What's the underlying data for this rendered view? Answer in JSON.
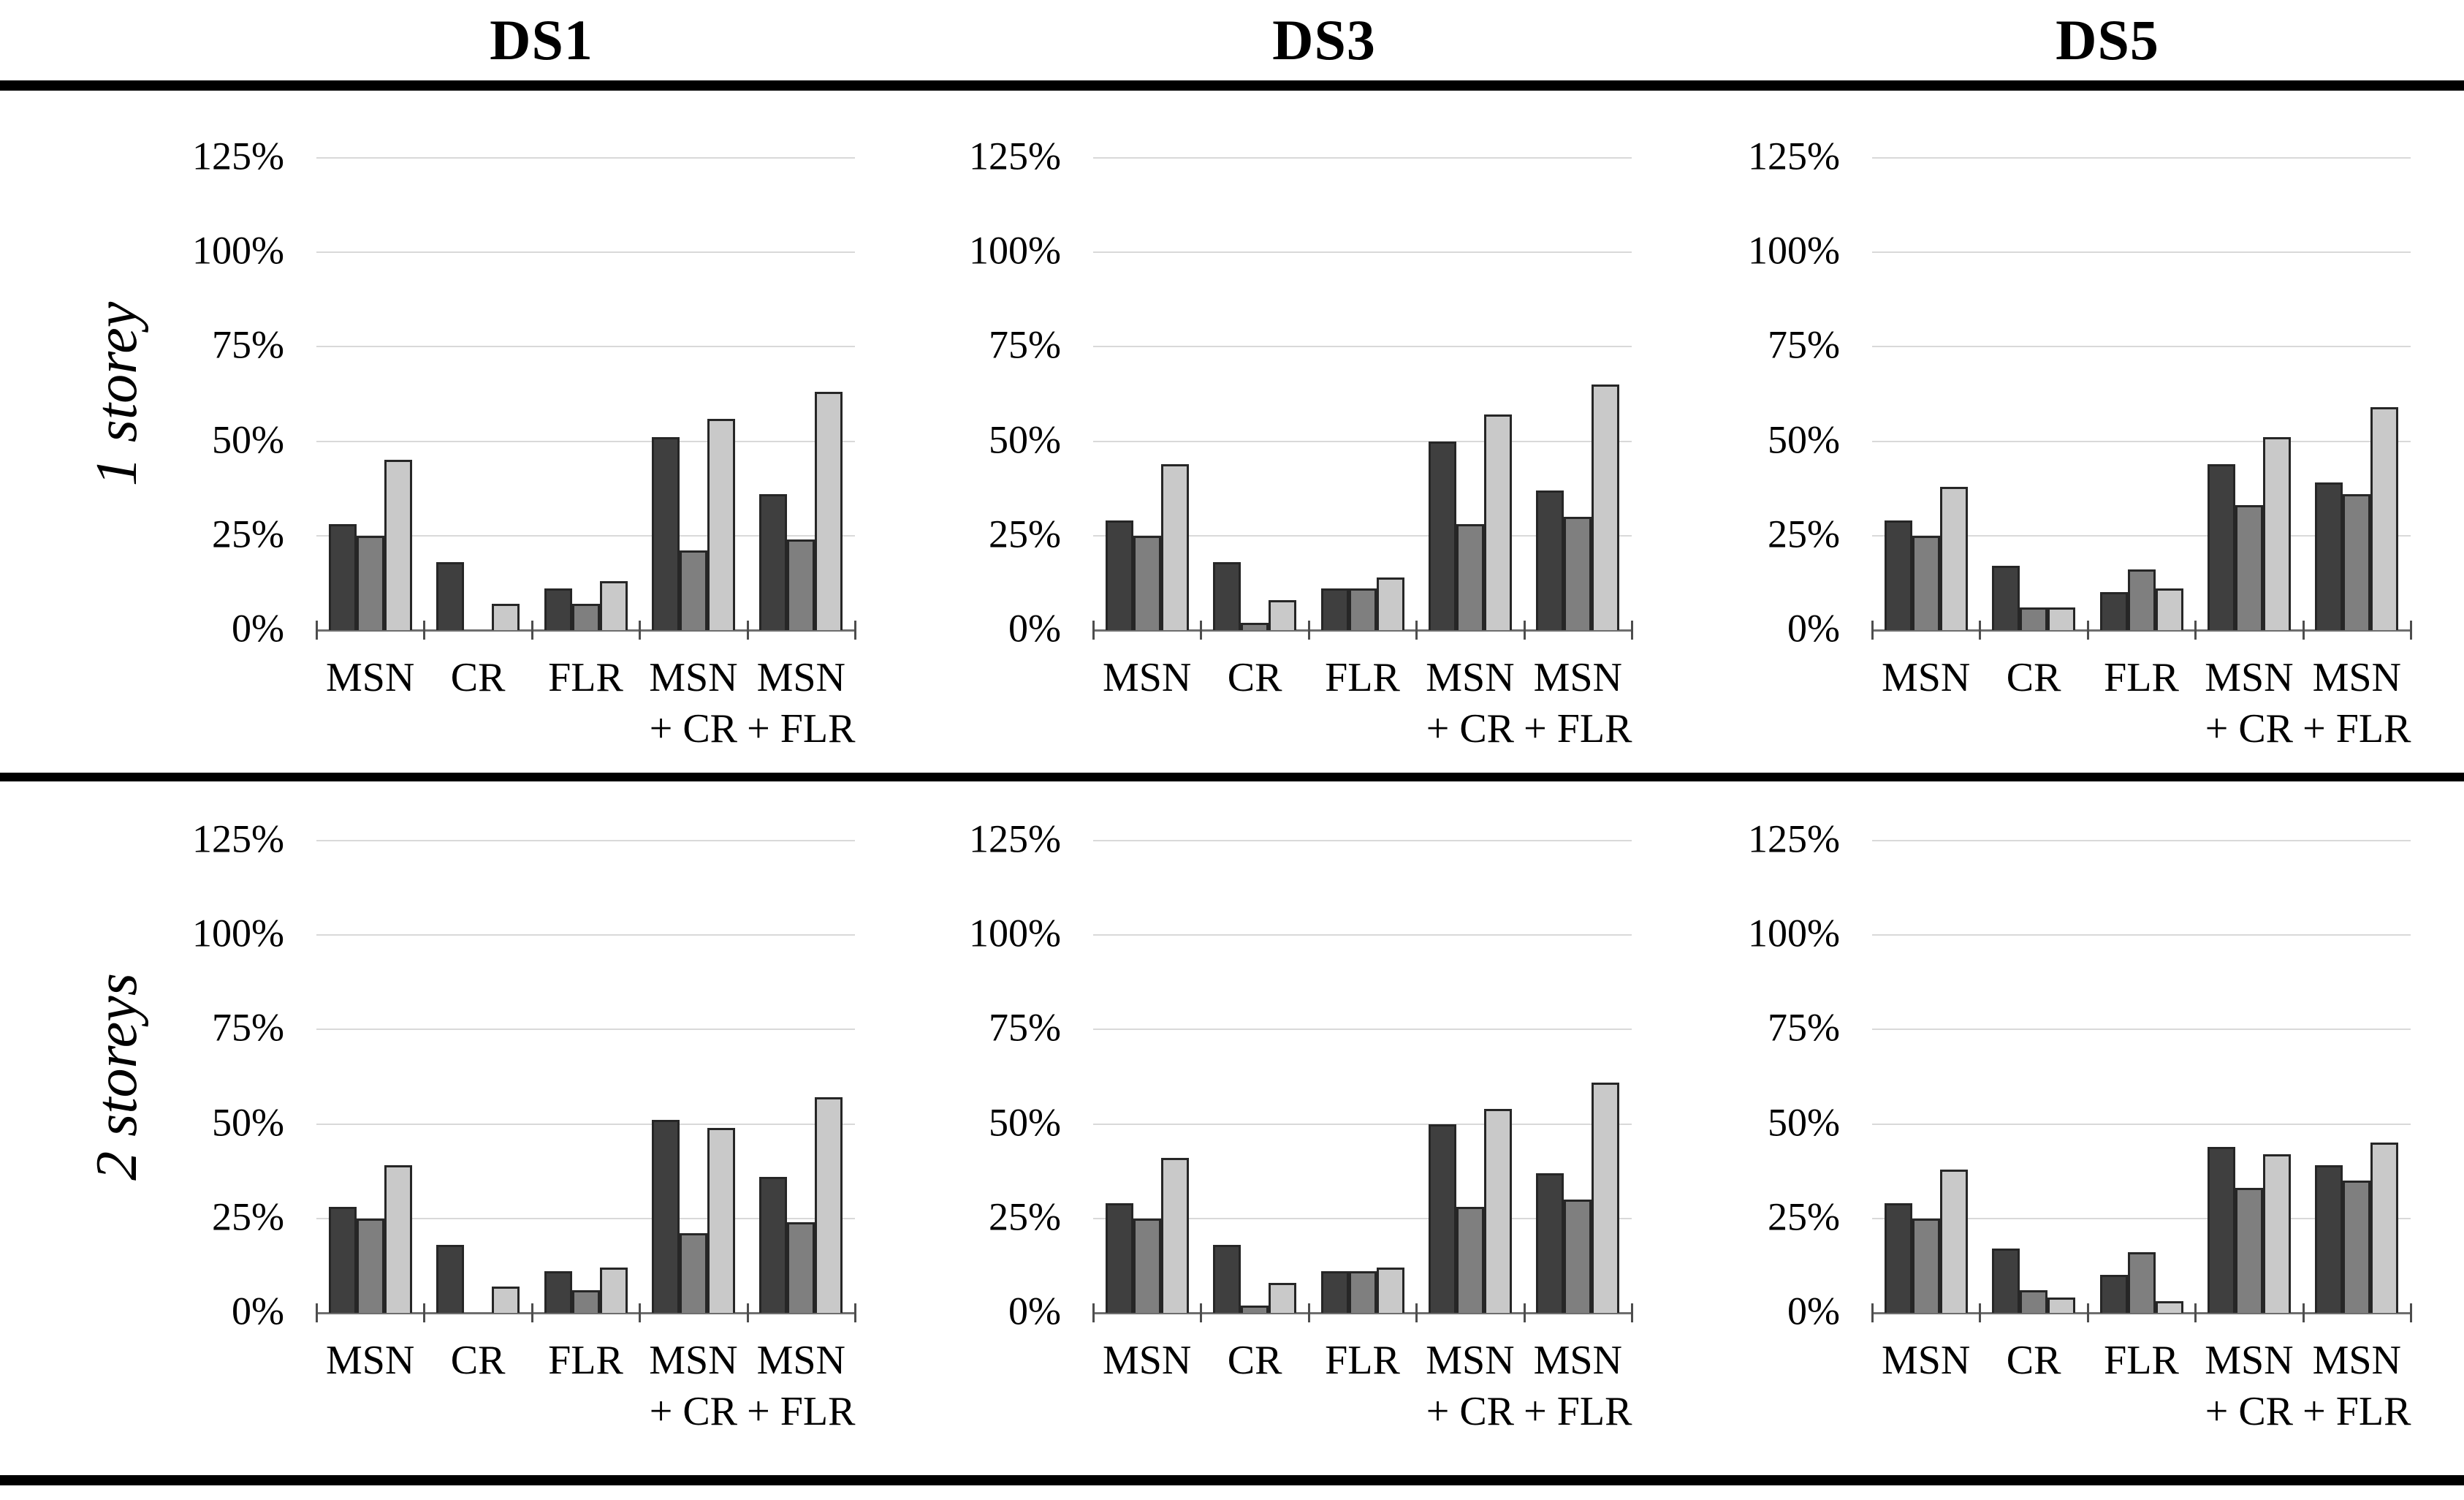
{
  "figure": {
    "column_titles": [
      "DS1",
      "DS3",
      "DS5"
    ],
    "row_labels": [
      "1 storey",
      "2 storeys"
    ],
    "y_axis_ticks": [
      "125%",
      "100%",
      "75%",
      "50%",
      "25%",
      "0%"
    ],
    "colors": {
      "series_dark": "#3f3f3f",
      "series_mid": "#7f7f7f",
      "series_light": "#c9c9c9",
      "bar_border": "#262626",
      "gridline": "#d9d9d9",
      "baseline": "#6e6e6e",
      "axis_tick": "#4d4d4d",
      "rule": "#000000",
      "text": "#000000"
    }
  },
  "chart_data": [
    {
      "type": "bar",
      "row": "1 storey",
      "column": "DS1",
      "categories": [
        "MSN",
        "CR",
        "FLR",
        "MSN + CR",
        "MSN + FLR"
      ],
      "series": [
        {
          "name": "dark-grey",
          "values": [
            28,
            18,
            11,
            51,
            36
          ]
        },
        {
          "name": "mid-grey",
          "values": [
            25,
            0,
            7,
            21,
            24
          ]
        },
        {
          "name": "light-grey",
          "values": [
            45,
            7,
            13,
            56,
            63
          ]
        }
      ],
      "ylabel_format": "percent",
      "ylim": [
        0,
        125
      ],
      "ytick_step": 25,
      "grid": true,
      "legend": false
    },
    {
      "type": "bar",
      "row": "1 storey",
      "column": "DS3",
      "categories": [
        "MSN",
        "CR",
        "FLR",
        "MSN + CR",
        "MSN + FLR"
      ],
      "series": [
        {
          "name": "dark-grey",
          "values": [
            29,
            18,
            11,
            50,
            37
          ]
        },
        {
          "name": "mid-grey",
          "values": [
            25,
            2,
            11,
            28,
            30
          ]
        },
        {
          "name": "light-grey",
          "values": [
            44,
            8,
            14,
            57,
            65
          ]
        }
      ],
      "ylabel_format": "percent",
      "ylim": [
        0,
        125
      ],
      "ytick_step": 25,
      "grid": true,
      "legend": false
    },
    {
      "type": "bar",
      "row": "1 storey",
      "column": "DS5",
      "categories": [
        "MSN",
        "CR",
        "FLR",
        "MSN + CR",
        "MSN + FLR"
      ],
      "series": [
        {
          "name": "dark-grey",
          "values": [
            29,
            17,
            10,
            44,
            39
          ]
        },
        {
          "name": "mid-grey",
          "values": [
            25,
            6,
            16,
            33,
            36
          ]
        },
        {
          "name": "light-grey",
          "values": [
            38,
            6,
            11,
            51,
            59
          ]
        }
      ],
      "ylabel_format": "percent",
      "ylim": [
        0,
        125
      ],
      "ytick_step": 25,
      "grid": true,
      "legend": false
    },
    {
      "type": "bar",
      "row": "2 storeys",
      "column": "DS1",
      "categories": [
        "MSN",
        "CR",
        "FLR",
        "MSN + CR",
        "MSN + FLR"
      ],
      "series": [
        {
          "name": "dark-grey",
          "values": [
            28,
            18,
            11,
            51,
            36
          ]
        },
        {
          "name": "mid-grey",
          "values": [
            25,
            0,
            6,
            21,
            24
          ]
        },
        {
          "name": "light-grey",
          "values": [
            39,
            7,
            12,
            49,
            57
          ]
        }
      ],
      "ylabel_format": "percent",
      "ylim": [
        0,
        125
      ],
      "ytick_step": 25,
      "grid": true,
      "legend": false
    },
    {
      "type": "bar",
      "row": "2 storeys",
      "column": "DS3",
      "categories": [
        "MSN",
        "CR",
        "FLR",
        "MSN + CR",
        "MSN + FLR"
      ],
      "series": [
        {
          "name": "dark-grey",
          "values": [
            29,
            18,
            11,
            50,
            37
          ]
        },
        {
          "name": "mid-grey",
          "values": [
            25,
            2,
            11,
            28,
            30
          ]
        },
        {
          "name": "light-grey",
          "values": [
            41,
            8,
            12,
            54,
            61
          ]
        }
      ],
      "ylabel_format": "percent",
      "ylim": [
        0,
        125
      ],
      "ytick_step": 25,
      "grid": true,
      "legend": false
    },
    {
      "type": "bar",
      "row": "2 storeys",
      "column": "DS5",
      "categories": [
        "MSN",
        "CR",
        "FLR",
        "MSN + CR",
        "MSN + FLR"
      ],
      "series": [
        {
          "name": "dark-grey",
          "values": [
            29,
            17,
            10,
            44,
            39
          ]
        },
        {
          "name": "mid-grey",
          "values": [
            25,
            6,
            16,
            33,
            35
          ]
        },
        {
          "name": "light-grey",
          "values": [
            38,
            4,
            3,
            42,
            45
          ]
        }
      ],
      "ylabel_format": "percent",
      "ylim": [
        0,
        125
      ],
      "ytick_step": 25,
      "grid": true,
      "legend": false
    }
  ]
}
